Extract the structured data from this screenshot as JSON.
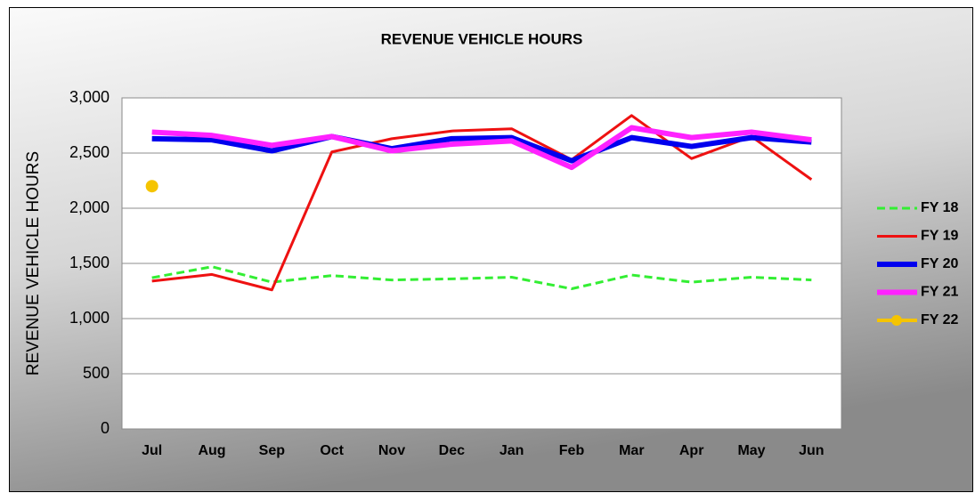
{
  "chart_data": {
    "type": "line",
    "title": "REVENUE VEHICLE HOURS",
    "y_label": "REVENUE VEHICLE HOURS",
    "categories": [
      "Jul",
      "Aug",
      "Sep",
      "Oct",
      "Nov",
      "Dec",
      "Jan",
      "Feb",
      "Mar",
      "Apr",
      "May",
      "Jun"
    ],
    "ylim": [
      0,
      3000
    ],
    "yticks": [
      0,
      500,
      {
        "value": 1000,
        "label": "1,000"
      },
      {
        "value": 1500,
        "label": "1,500"
      },
      {
        "value": 2000,
        "label": "2,000"
      },
      {
        "value": 2500,
        "label": "2,500"
      },
      {
        "value": 3000,
        "label": "3,000"
      }
    ],
    "grid": true,
    "legend": "right",
    "series": [
      {
        "name": "FY 18",
        "color": "#33ee33",
        "dashed": true,
        "values": [
          1370,
          1470,
          1330,
          1390,
          1350,
          1360,
          1375,
          1270,
          1395,
          1330,
          1375,
          1350
        ]
      },
      {
        "name": "FY 19",
        "color": "#ee1111",
        "values": [
          1340,
          1400,
          1260,
          2510,
          2630,
          2700,
          2720,
          2440,
          2840,
          2450,
          2650,
          2260
        ]
      },
      {
        "name": "FY 20",
        "color": "#0000ee",
        "values": [
          2630,
          2620,
          2520,
          2650,
          2540,
          2630,
          2640,
          2430,
          2640,
          2560,
          2640,
          2600
        ]
      },
      {
        "name": "FY 21",
        "color": "#ff22ff",
        "values": [
          2690,
          2660,
          2570,
          2650,
          2520,
          2580,
          2610,
          2370,
          2730,
          2640,
          2690,
          2620
        ]
      },
      {
        "name": "FY 22",
        "color": "#f5c400",
        "marker": true,
        "values": [
          2200,
          null,
          null,
          null,
          null,
          null,
          null,
          null,
          null,
          null,
          null,
          null
        ]
      }
    ]
  }
}
